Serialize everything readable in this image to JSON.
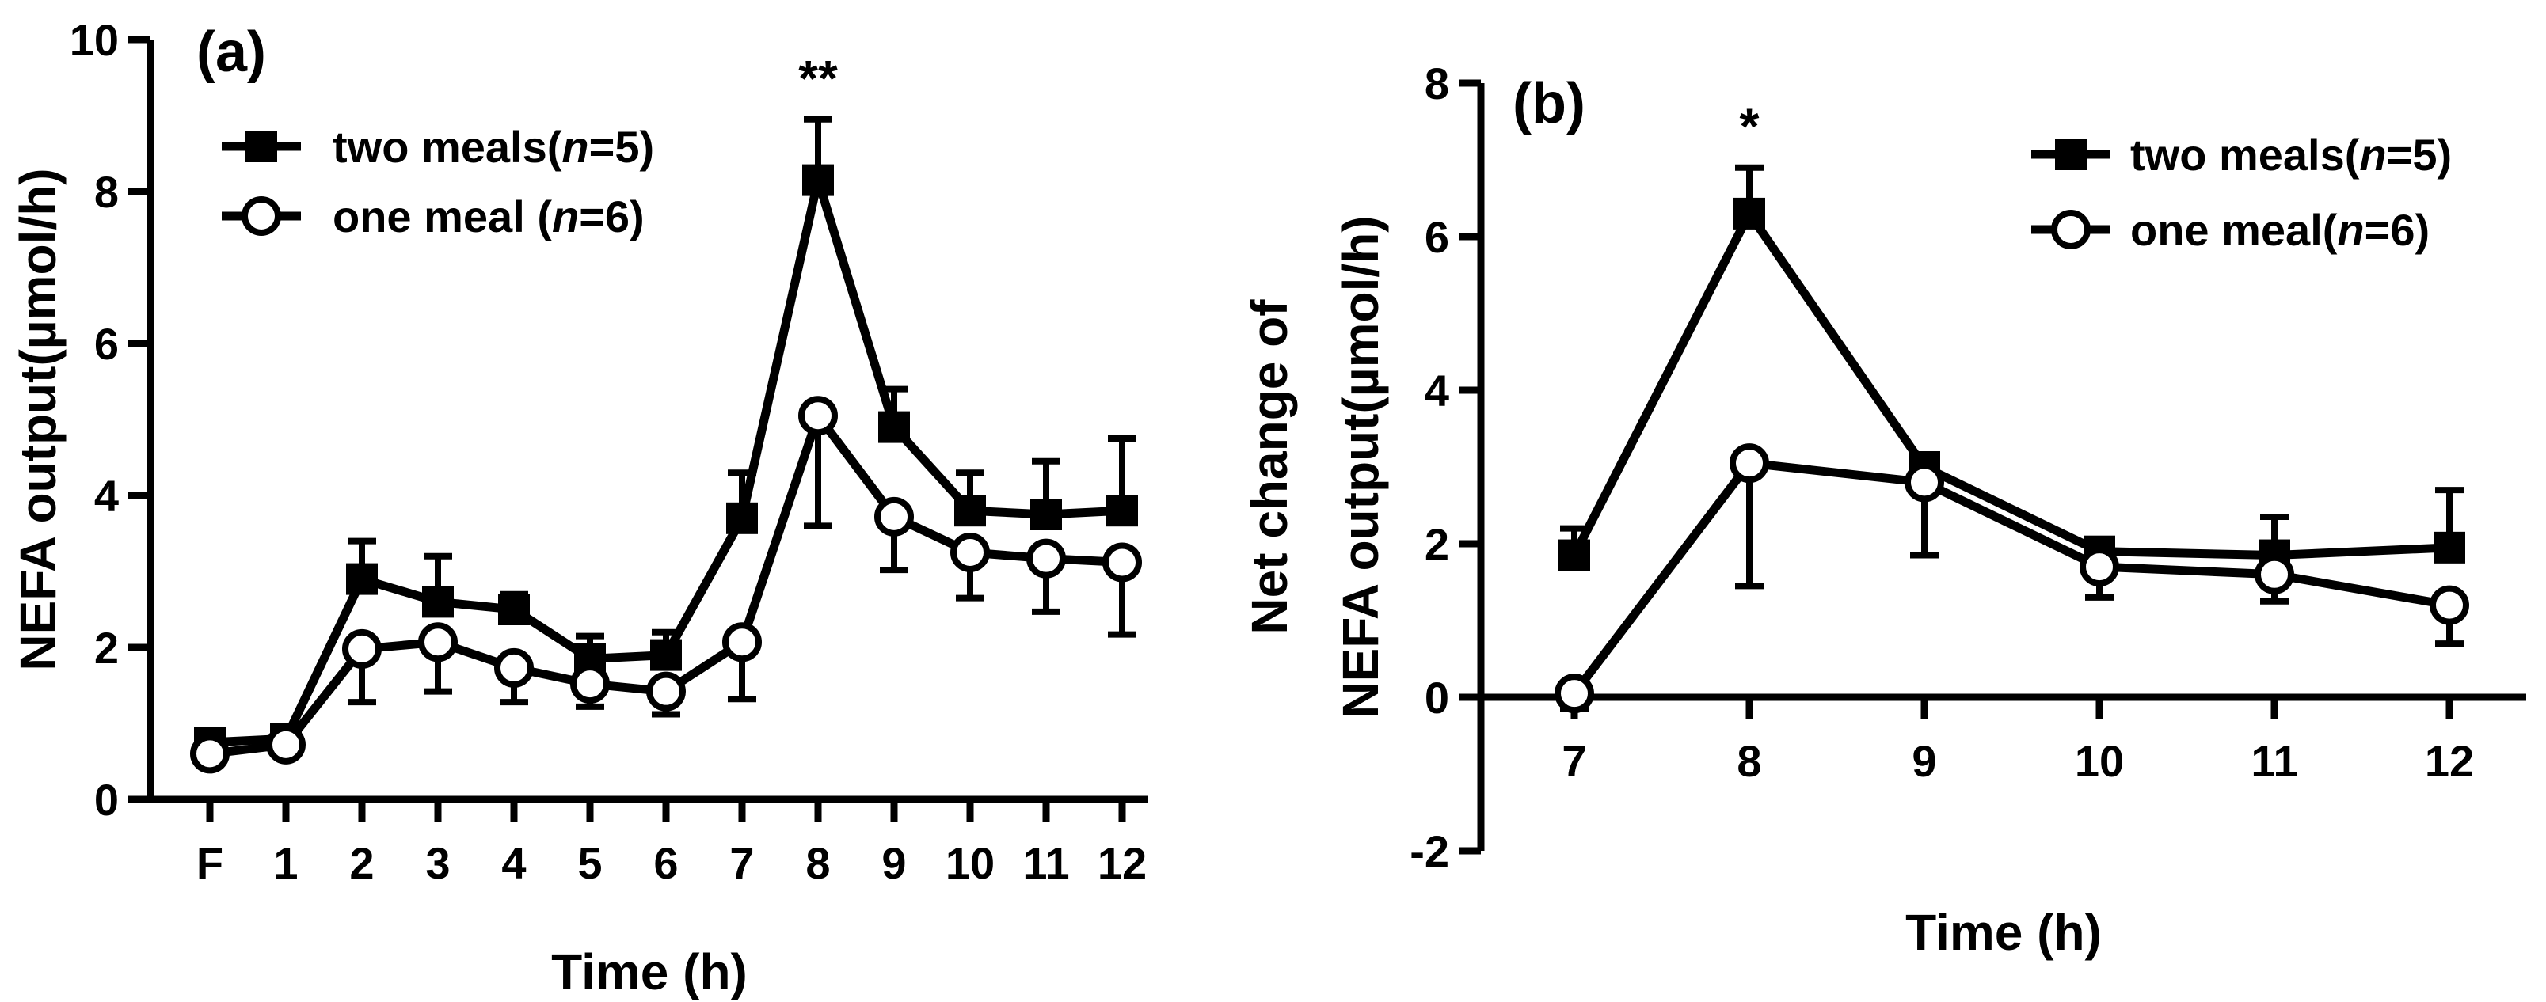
{
  "chart_data": [
    {
      "panel": "(a)",
      "type": "line",
      "xlabel": "Time (h)",
      "ylabel": "NEFA output(µmol/h)",
      "categories": [
        "F",
        "1",
        "2",
        "3",
        "4",
        "5",
        "6",
        "7",
        "8",
        "9",
        "10",
        "11",
        "12"
      ],
      "ylim": [
        0,
        10
      ],
      "yticks": [
        0,
        2,
        4,
        6,
        8,
        10
      ],
      "significance": [
        {
          "category": "8",
          "label": "**"
        }
      ],
      "series": [
        {
          "name": "two meals(n=5)",
          "name_parts": [
            "two meals(",
            "n",
            "=5)"
          ],
          "marker": "filled-square",
          "values": [
            0.75,
            0.8,
            2.9,
            2.6,
            2.5,
            1.85,
            1.9,
            3.7,
            8.15,
            4.9,
            3.8,
            3.75,
            3.8
          ],
          "errors": [
            0.12,
            0.1,
            0.5,
            0.6,
            0.2,
            0.3,
            0.3,
            0.6,
            0.8,
            0.5,
            0.5,
            0.7,
            0.95
          ],
          "error_direction": "up"
        },
        {
          "name": "one meal (n=6)",
          "name_parts": [
            "one meal (",
            "n",
            "=6)"
          ],
          "marker": "open-circle",
          "values": [
            0.6,
            0.72,
            1.98,
            2.07,
            1.73,
            1.52,
            1.42,
            2.07,
            5.05,
            3.72,
            3.25,
            3.17,
            3.12
          ],
          "errors": [
            0.1,
            0.1,
            0.7,
            0.65,
            0.45,
            0.3,
            0.3,
            0.75,
            1.45,
            0.7,
            0.6,
            0.7,
            0.95
          ],
          "error_direction": "down"
        }
      ]
    },
    {
      "panel": "(b)",
      "type": "line",
      "xlabel": "Time (h)",
      "ylabel_lines": [
        "Net change of",
        "NEFA output(µmol/h)"
      ],
      "categories": [
        "7",
        "8",
        "9",
        "10",
        "11",
        "12"
      ],
      "ylim": [
        -2,
        8
      ],
      "yticks": [
        -2,
        0,
        2,
        4,
        6,
        8
      ],
      "significance": [
        {
          "category": "8",
          "label": "*"
        }
      ],
      "series": [
        {
          "name": "two meals(n=5)",
          "name_parts": [
            "two meals(",
            "n",
            "=5)"
          ],
          "marker": "filled-square",
          "values": [
            1.85,
            6.3,
            3.0,
            1.9,
            1.85,
            1.95
          ],
          "errors": [
            0.35,
            0.6,
            0.15,
            0.15,
            0.5,
            0.75
          ],
          "error_direction": "up"
        },
        {
          "name": "one meal(n=6)",
          "name_parts": [
            "one meal(",
            "n",
            "=6)"
          ],
          "marker": "open-circle",
          "values": [
            0.05,
            3.05,
            2.8,
            1.7,
            1.6,
            1.2
          ],
          "errors": [
            0.2,
            1.6,
            0.95,
            0.4,
            0.35,
            0.5
          ],
          "error_direction": "down"
        }
      ]
    }
  ]
}
